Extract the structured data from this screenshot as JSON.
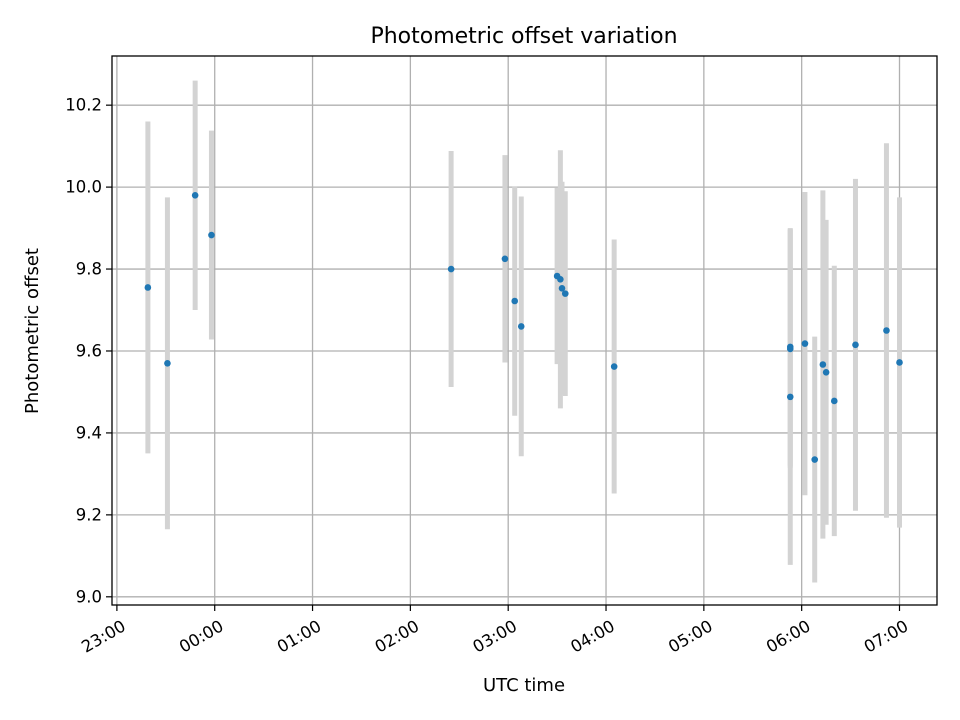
{
  "chart_data": {
    "type": "scatter",
    "title": "Photometric offset variation",
    "xlabel": "UTC time",
    "ylabel": "Photometric offset",
    "grid": true,
    "x_ticks": [
      "23:00",
      "00:00",
      "01:00",
      "02:00",
      "03:00",
      "04:00",
      "05:00",
      "06:00",
      "07:00"
    ],
    "y_ticks": [
      "9.0",
      "9.2",
      "9.4",
      "9.6",
      "9.8",
      "10.0",
      "10.2"
    ],
    "ylim": [
      8.98,
      10.32
    ],
    "xlim": [
      "22:57",
      "07:23"
    ],
    "marker_color": "#1f77b4",
    "errorbar_color": "#d3d3d3",
    "points": [
      {
        "x": "23:19",
        "y": 9.755,
        "yerr": 0.405
      },
      {
        "x": "23:31",
        "y": 9.57,
        "yerr": 0.405
      },
      {
        "x": "23:48",
        "y": 9.98,
        "yerr": 0.28
      },
      {
        "x": "23:58",
        "y": 9.883,
        "yerr": 0.255
      },
      {
        "x": "02:25",
        "y": 9.8,
        "yerr": 0.288
      },
      {
        "x": "02:58",
        "y": 9.825,
        "yerr": 0.253
      },
      {
        "x": "03:04",
        "y": 9.722,
        "yerr": 0.28
      },
      {
        "x": "03:08",
        "y": 9.66,
        "yerr": 0.317
      },
      {
        "x": "03:30",
        "y": 9.783,
        "yerr": 0.215
      },
      {
        "x": "03:32",
        "y": 9.775,
        "yerr": 0.315
      },
      {
        "x": "03:33",
        "y": 9.753,
        "yerr": 0.26
      },
      {
        "x": "03:35",
        "y": 9.74,
        "yerr": 0.25
      },
      {
        "x": "04:05",
        "y": 9.562,
        "yerr": 0.31
      },
      {
        "x": "05:53",
        "y": 9.61,
        "yerr": 0.29
      },
      {
        "x": "05:53",
        "y": 9.605,
        "yerr": 0.29
      },
      {
        "x": "05:53",
        "y": 9.488,
        "yerr": 0.41
      },
      {
        "x": "06:02",
        "y": 9.618,
        "yerr": 0.37
      },
      {
        "x": "06:08",
        "y": 9.335,
        "yerr": 0.3
      },
      {
        "x": "06:13",
        "y": 9.567,
        "yerr": 0.425
      },
      {
        "x": "06:15",
        "y": 9.548,
        "yerr": 0.372
      },
      {
        "x": "06:20",
        "y": 9.478,
        "yerr": 0.33
      },
      {
        "x": "06:33",
        "y": 9.615,
        "yerr": 0.405
      },
      {
        "x": "06:52",
        "y": 9.65,
        "yerr": 0.457
      },
      {
        "x": "07:00",
        "y": 9.572,
        "yerr": 0.403
      }
    ]
  }
}
